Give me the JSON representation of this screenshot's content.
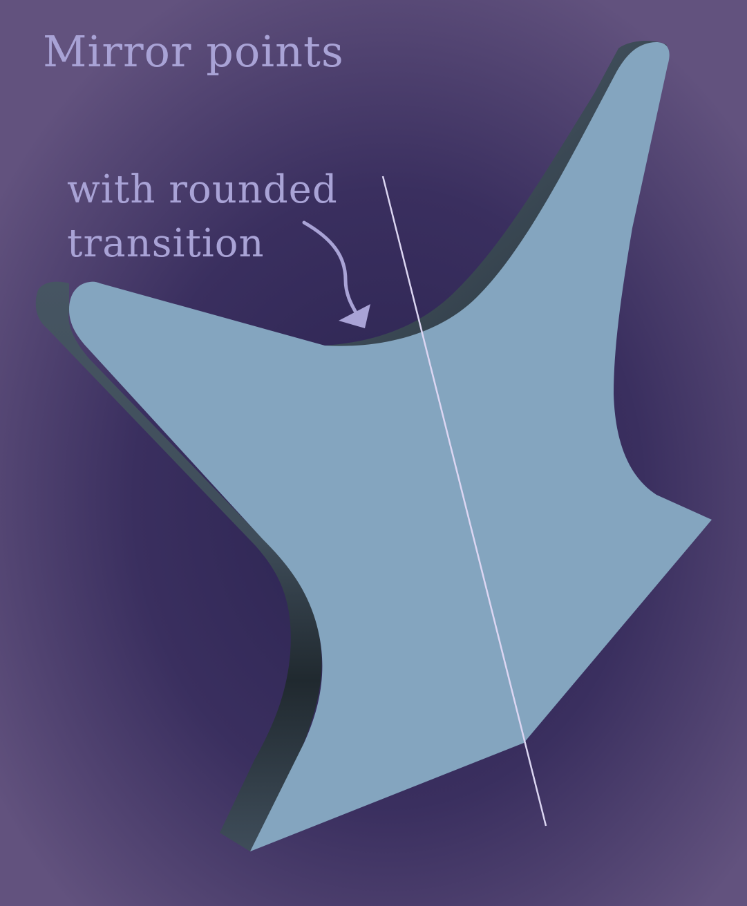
{
  "title": "Mirror points",
  "callout": {
    "line1": "with rounded",
    "line2": "transition"
  },
  "colors": {
    "background": "#5d4f79",
    "background_dark": "#332a57",
    "face": "#84a5bf",
    "side": "#3f4e5c",
    "side_dark": "#212b32",
    "text": "#a9a3d6",
    "mirror_line": "#dcd6f2",
    "arrow": "#a9a3d6"
  }
}
